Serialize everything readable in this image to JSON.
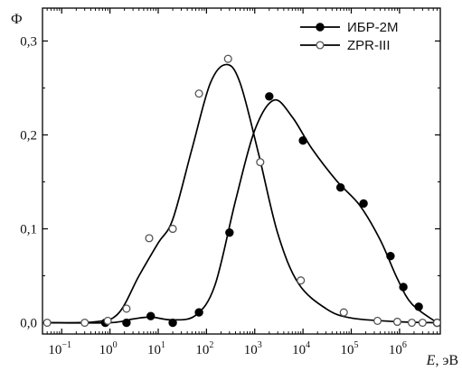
{
  "chart_data": {
    "type": "scatter",
    "ylabel": "Ф",
    "xlabel_symbol": "E",
    "xlabel_unit": ", эВ",
    "x_scale": "log",
    "xlim": [
      0.04,
      7000000
    ],
    "ylim": [
      -0.012,
      0.335
    ],
    "y_ticks": [
      {
        "value": 0.0,
        "label": "0,0"
      },
      {
        "value": 0.1,
        "label": "0,1"
      },
      {
        "value": 0.2,
        "label": "0,2"
      },
      {
        "value": 0.3,
        "label": "0,3"
      }
    ],
    "x_ticks": [
      {
        "value": 0.1,
        "base": "10",
        "exp": "−1"
      },
      {
        "value": 1,
        "base": "10",
        "exp": "0"
      },
      {
        "value": 10,
        "base": "10",
        "exp": "1"
      },
      {
        "value": 100,
        "base": "10",
        "exp": "2"
      },
      {
        "value": 1000,
        "base": "10",
        "exp": "3"
      },
      {
        "value": 10000,
        "base": "10",
        "exp": "4"
      },
      {
        "value": 100000,
        "base": "10",
        "exp": "5"
      },
      {
        "value": 1000000,
        "base": "10",
        "exp": "6"
      }
    ],
    "grid": false,
    "legend_position": "top-right",
    "series": [
      {
        "name": "ИБР-2М",
        "marker": "filled-circle",
        "color": "#000000",
        "points": [
          {
            "x": 0.8,
            "y": 0.0
          },
          {
            "x": 2.2,
            "y": 0.0
          },
          {
            "x": 7,
            "y": 0.007
          },
          {
            "x": 20,
            "y": 0.0
          },
          {
            "x": 70,
            "y": 0.011
          },
          {
            "x": 300,
            "y": 0.096
          },
          {
            "x": 2000,
            "y": 0.241
          },
          {
            "x": 10000,
            "y": 0.194
          },
          {
            "x": 60000,
            "y": 0.144
          },
          {
            "x": 180000,
            "y": 0.127
          },
          {
            "x": 650000,
            "y": 0.071
          },
          {
            "x": 1200000,
            "y": 0.038
          },
          {
            "x": 2500000,
            "y": 0.017
          },
          {
            "x": 6000000,
            "y": 0.0
          }
        ],
        "curve": [
          {
            "x": 0.05,
            "y": 0.0
          },
          {
            "x": 1,
            "y": 0.0
          },
          {
            "x": 3,
            "y": 0.004
          },
          {
            "x": 7,
            "y": 0.006
          },
          {
            "x": 20,
            "y": 0.003
          },
          {
            "x": 60,
            "y": 0.008
          },
          {
            "x": 150,
            "y": 0.04
          },
          {
            "x": 400,
            "y": 0.13
          },
          {
            "x": 1000,
            "y": 0.205
          },
          {
            "x": 2500,
            "y": 0.237
          },
          {
            "x": 6000,
            "y": 0.219
          },
          {
            "x": 15000,
            "y": 0.186
          },
          {
            "x": 50000,
            "y": 0.151
          },
          {
            "x": 150000,
            "y": 0.125
          },
          {
            "x": 400000,
            "y": 0.088
          },
          {
            "x": 900000,
            "y": 0.047
          },
          {
            "x": 1800000,
            "y": 0.02
          },
          {
            "x": 6000000,
            "y": 0.0
          }
        ]
      },
      {
        "name": "ZPR-III",
        "marker": "open-circle",
        "color": "#000000",
        "points": [
          {
            "x": 0.05,
            "y": 0.0
          },
          {
            "x": 0.3,
            "y": 0.0
          },
          {
            "x": 0.9,
            "y": 0.002
          },
          {
            "x": 2.2,
            "y": 0.015
          },
          {
            "x": 6.5,
            "y": 0.09
          },
          {
            "x": 20,
            "y": 0.1
          },
          {
            "x": 70,
            "y": 0.244
          },
          {
            "x": 280,
            "y": 0.281
          },
          {
            "x": 1300,
            "y": 0.171
          },
          {
            "x": 9000,
            "y": 0.045
          },
          {
            "x": 70000,
            "y": 0.011
          },
          {
            "x": 350000,
            "y": 0.002
          },
          {
            "x": 900000,
            "y": 0.001
          },
          {
            "x": 1800000,
            "y": 0.0
          },
          {
            "x": 3000000,
            "y": 0.0
          },
          {
            "x": 6000000,
            "y": 0.0
          }
        ],
        "curve": [
          {
            "x": 0.05,
            "y": 0.0
          },
          {
            "x": 0.5,
            "y": 0.001
          },
          {
            "x": 1.5,
            "y": 0.01
          },
          {
            "x": 4,
            "y": 0.05
          },
          {
            "x": 10,
            "y": 0.085
          },
          {
            "x": 20,
            "y": 0.11
          },
          {
            "x": 50,
            "y": 0.185
          },
          {
            "x": 120,
            "y": 0.255
          },
          {
            "x": 260,
            "y": 0.275
          },
          {
            "x": 500,
            "y": 0.255
          },
          {
            "x": 1200,
            "y": 0.18
          },
          {
            "x": 3000,
            "y": 0.095
          },
          {
            "x": 8000,
            "y": 0.042
          },
          {
            "x": 30000,
            "y": 0.015
          },
          {
            "x": 100000,
            "y": 0.005
          },
          {
            "x": 1000000,
            "y": 0.001
          },
          {
            "x": 6000000,
            "y": 0.0
          }
        ]
      }
    ]
  }
}
